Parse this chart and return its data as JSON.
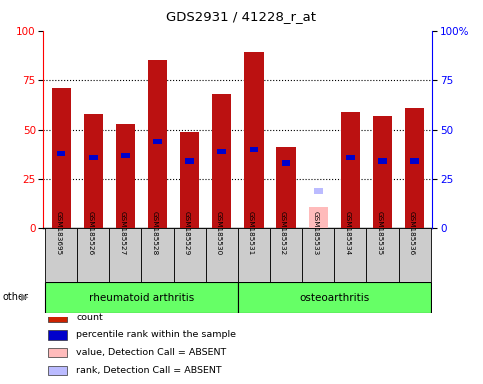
{
  "title": "GDS2931 / 41228_r_at",
  "samples": [
    "GSM183695",
    "GSM185526",
    "GSM185527",
    "GSM185528",
    "GSM185529",
    "GSM185530",
    "GSM185531",
    "GSM185532",
    "GSM185533",
    "GSM185534",
    "GSM185535",
    "GSM185536"
  ],
  "count_values": [
    71,
    58,
    53,
    85,
    49,
    68,
    89,
    41,
    0,
    59,
    57,
    61
  ],
  "percentile_values": [
    38,
    36,
    37,
    44,
    34,
    39,
    40,
    33,
    0,
    36,
    34,
    34
  ],
  "absent_value_gsm185533": 11,
  "absent_rank_gsm185533": 19,
  "absent_sample_index": 8,
  "groups": [
    {
      "label": "rheumatoid arthritis",
      "start": 0,
      "end": 6
    },
    {
      "label": "osteoarthritis",
      "start": 6,
      "end": 12
    }
  ],
  "group_color": "#66ff66",
  "bar_color_count": "#bb1111",
  "bar_color_percentile": "#0000cc",
  "bar_color_absent_value": "#ffbbbb",
  "bar_color_absent_rank": "#bbbbff",
  "ylim": [
    0,
    100
  ],
  "yticks": [
    0,
    25,
    50,
    75,
    100
  ],
  "right_yticklabels": [
    "0",
    "25",
    "50",
    "75",
    "100%"
  ],
  "legend_items": [
    {
      "color": "#cc2200",
      "label": "count"
    },
    {
      "color": "#0000cc",
      "label": "percentile rank within the sample"
    },
    {
      "color": "#ffbbbb",
      "label": "value, Detection Call = ABSENT"
    },
    {
      "color": "#bbbbff",
      "label": "rank, Detection Call = ABSENT"
    }
  ],
  "other_label": "other"
}
